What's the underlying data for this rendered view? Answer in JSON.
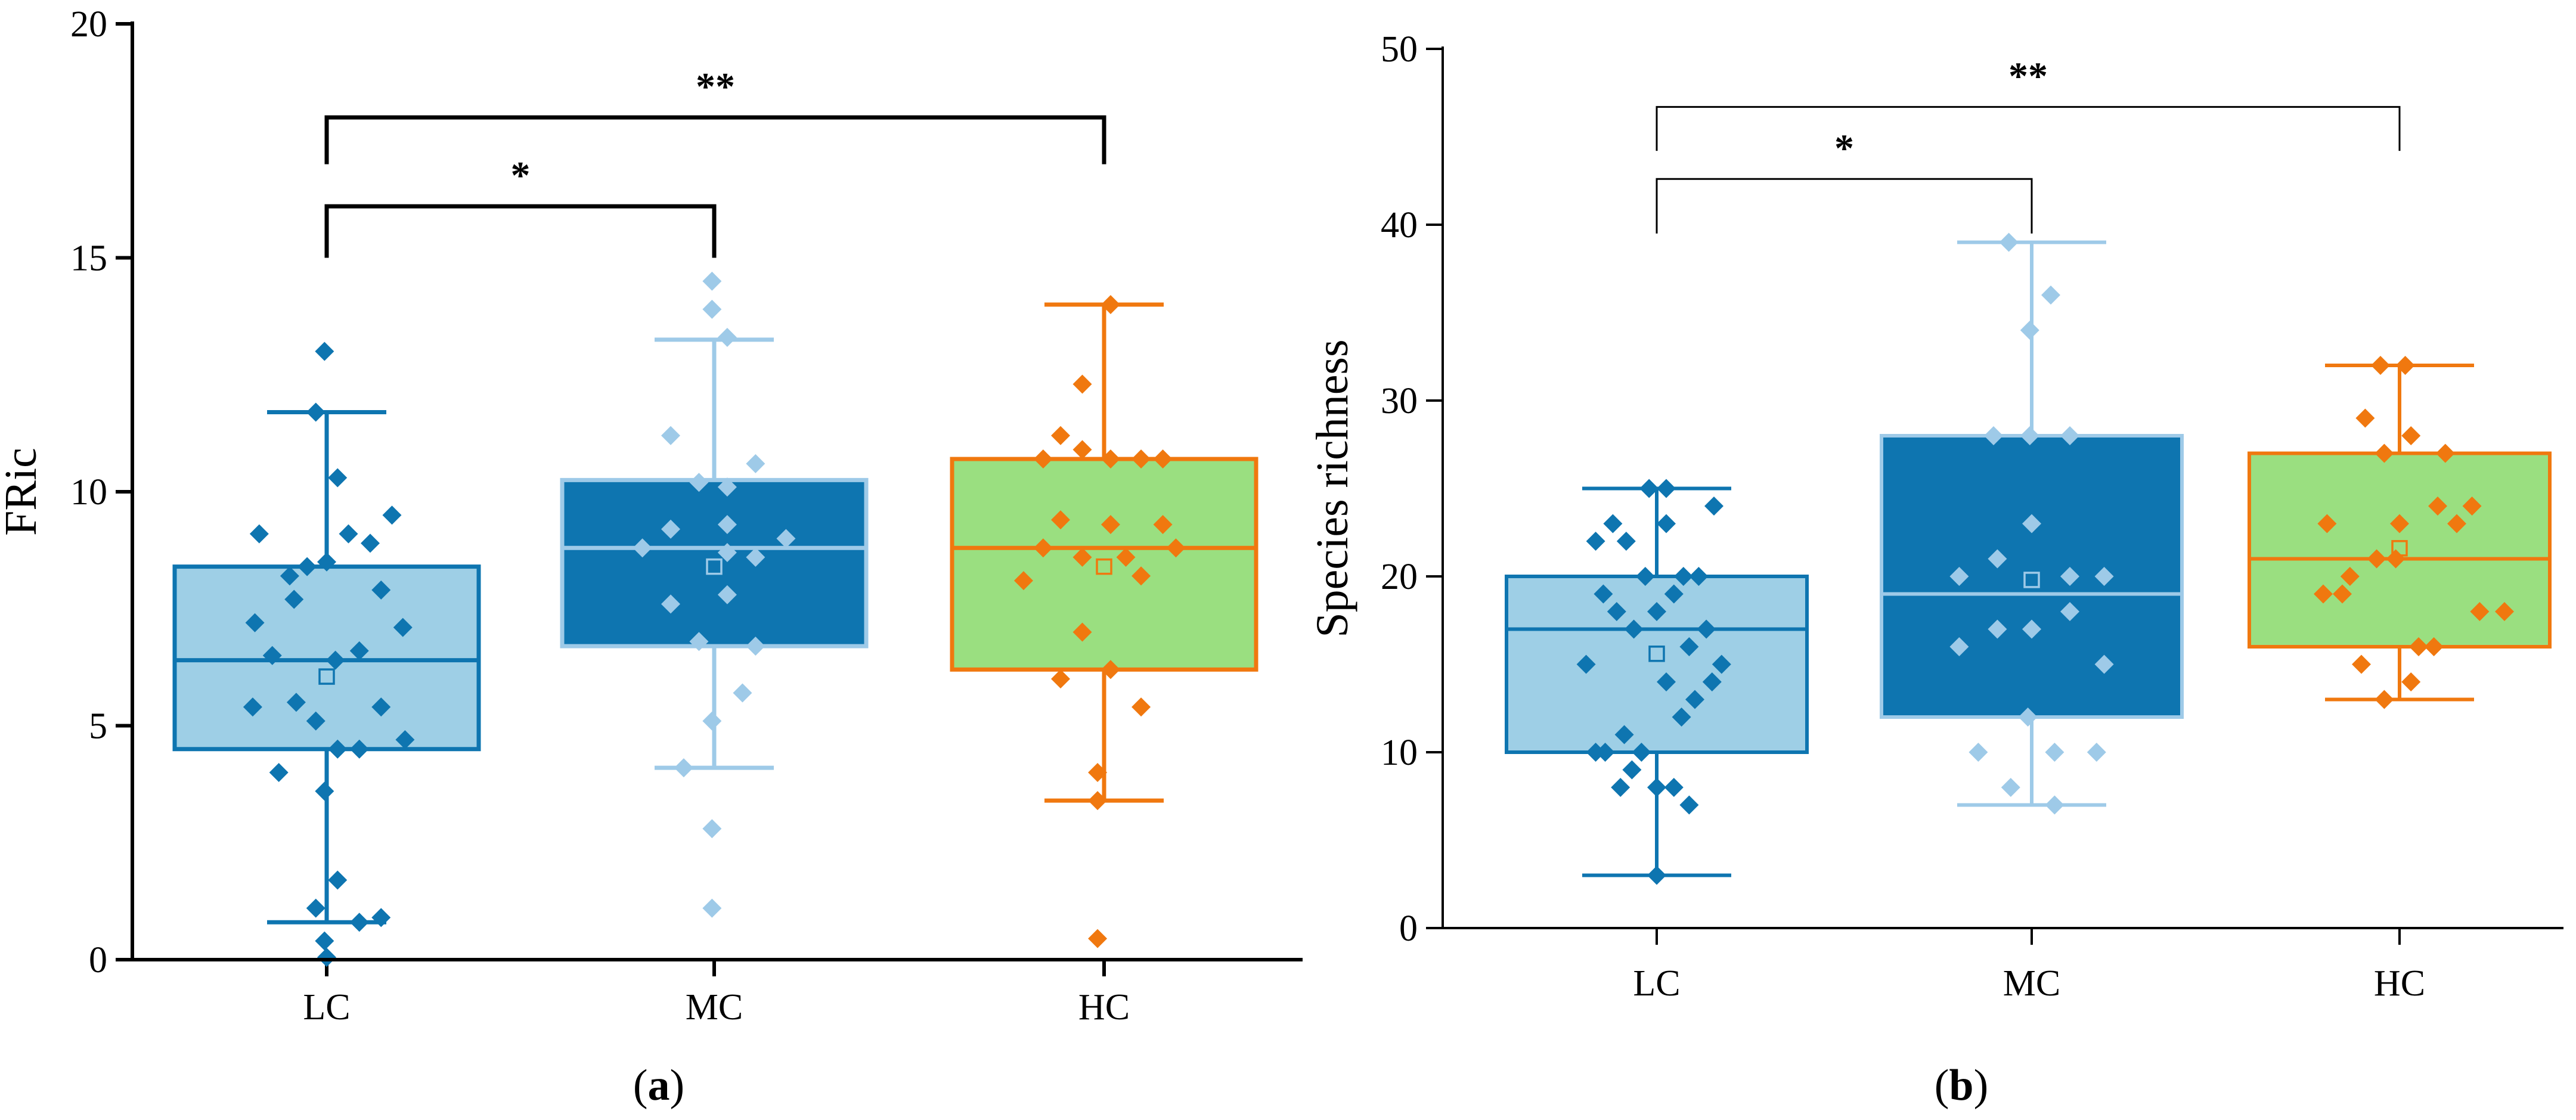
{
  "colors": {
    "lc_fill": "#9ECFE6",
    "lc_edge": "#0E75B0",
    "mc_fill": "#0E75B0",
    "mc_edge": "#9ECAE8",
    "hc_fill": "#9ADF80",
    "hc_edge": "#F0780F",
    "axis": "#000000"
  },
  "chart_data": [
    {
      "panel_label": "(a)",
      "panel_letter": "a",
      "type": "boxplot",
      "ylabel": "FRic",
      "xlabel": "",
      "ylim": [
        0,
        20
      ],
      "yticks": [
        0,
        5,
        10,
        15,
        20
      ],
      "ytick_labels": [
        "0",
        "5",
        "10",
        "15",
        "20"
      ],
      "categories": [
        "LC",
        "MC",
        "HC"
      ],
      "boxes": [
        {
          "group": "LC",
          "whisker_low": 0.8,
          "q1": 4.5,
          "median": 6.4,
          "q3": 8.4,
          "whisker_high": 11.7,
          "mean": 6.05
        },
        {
          "group": "MC",
          "whisker_low": 4.1,
          "q1": 6.7,
          "median": 8.8,
          "q3": 10.25,
          "whisker_high": 13.25,
          "mean": 8.4
        },
        {
          "group": "HC",
          "whisker_low": 3.4,
          "q1": 6.2,
          "median": 8.8,
          "q3": 10.7,
          "whisker_high": 14.0,
          "mean": 8.4
        }
      ],
      "points": [
        {
          "group": "LC",
          "data": [
            {
              "o": -0.31,
              "y": 9.1
            },
            {
              "o": -0.33,
              "y": 7.2
            },
            {
              "o": -0.34,
              "y": 5.4
            },
            {
              "o": -0.25,
              "y": 6.5
            },
            {
              "o": -0.22,
              "y": 4.0
            },
            {
              "o": -0.17,
              "y": 8.2
            },
            {
              "o": -0.15,
              "y": 7.7
            },
            {
              "o": -0.14,
              "y": 5.5
            },
            {
              "o": -0.09,
              "y": 8.4
            },
            {
              "o": -0.05,
              "y": 5.1
            },
            {
              "o": -0.05,
              "y": 1.1
            },
            {
              "o": -0.05,
              "y": 11.7
            },
            {
              "o": -0.01,
              "y": 0.4
            },
            {
              "o": -0.01,
              "y": 3.6
            },
            {
              "o": -0.01,
              "y": 13.0
            },
            {
              "o": 0.0,
              "y": 8.5
            },
            {
              "o": 0.04,
              "y": 6.4
            },
            {
              "o": 0.05,
              "y": 4.5
            },
            {
              "o": 0.05,
              "y": 1.7
            },
            {
              "o": 0.05,
              "y": 10.3
            },
            {
              "o": 0.1,
              "y": 9.1
            },
            {
              "o": 0.15,
              "y": 4.5
            },
            {
              "o": 0.15,
              "y": 6.6
            },
            {
              "o": 0.15,
              "y": 0.8
            },
            {
              "o": 0.2,
              "y": 8.9
            },
            {
              "o": 0.25,
              "y": 7.9
            },
            {
              "o": 0.25,
              "y": 5.4
            },
            {
              "o": 0.25,
              "y": 0.9
            },
            {
              "o": 0.3,
              "y": 9.5
            },
            {
              "o": 0.35,
              "y": 7.1
            },
            {
              "o": 0.36,
              "y": 4.7
            },
            {
              "o": 0.0,
              "y": 0.05
            }
          ]
        },
        {
          "group": "MC",
          "data": [
            {
              "o": -0.33,
              "y": 8.8
            },
            {
              "o": -0.2,
              "y": 11.2
            },
            {
              "o": -0.2,
              "y": 9.2
            },
            {
              "o": -0.2,
              "y": 7.6
            },
            {
              "o": -0.14,
              "y": 4.1
            },
            {
              "o": -0.07,
              "y": 10.2
            },
            {
              "o": -0.07,
              "y": 6.8
            },
            {
              "o": -0.01,
              "y": 14.5
            },
            {
              "o": -0.01,
              "y": 13.9
            },
            {
              "o": -0.01,
              "y": 5.1
            },
            {
              "o": -0.01,
              "y": 2.8
            },
            {
              "o": -0.01,
              "y": 1.1
            },
            {
              "o": 0.06,
              "y": 8.7
            },
            {
              "o": 0.06,
              "y": 13.3
            },
            {
              "o": 0.06,
              "y": 10.1
            },
            {
              "o": 0.06,
              "y": 9.3
            },
            {
              "o": 0.06,
              "y": 7.8
            },
            {
              "o": 0.13,
              "y": 5.7
            },
            {
              "o": 0.19,
              "y": 10.6
            },
            {
              "o": 0.19,
              "y": 8.6
            },
            {
              "o": 0.19,
              "y": 6.7
            },
            {
              "o": 0.33,
              "y": 9.0
            }
          ]
        },
        {
          "group": "HC",
          "data": [
            {
              "o": -0.37,
              "y": 8.1
            },
            {
              "o": -0.28,
              "y": 8.8
            },
            {
              "o": -0.28,
              "y": 10.7
            },
            {
              "o": -0.2,
              "y": 11.2
            },
            {
              "o": -0.2,
              "y": 9.4
            },
            {
              "o": -0.2,
              "y": 6.0
            },
            {
              "o": -0.1,
              "y": 10.9
            },
            {
              "o": -0.1,
              "y": 12.3
            },
            {
              "o": -0.1,
              "y": 8.6
            },
            {
              "o": -0.1,
              "y": 7.0
            },
            {
              "o": -0.03,
              "y": 4.0
            },
            {
              "o": -0.03,
              "y": 3.4
            },
            {
              "o": -0.03,
              "y": 0.45
            },
            {
              "o": 0.03,
              "y": 14.0
            },
            {
              "o": 0.03,
              "y": 10.7
            },
            {
              "o": 0.03,
              "y": 9.3
            },
            {
              "o": 0.03,
              "y": 6.2
            },
            {
              "o": 0.1,
              "y": 8.6
            },
            {
              "o": 0.17,
              "y": 10.7
            },
            {
              "o": 0.17,
              "y": 8.2
            },
            {
              "o": 0.17,
              "y": 5.4
            },
            {
              "o": 0.27,
              "y": 9.3
            },
            {
              "o": 0.27,
              "y": 10.7
            },
            {
              "o": 0.33,
              "y": 8.8
            }
          ]
        }
      ],
      "significance": [
        {
          "from": "LC",
          "to": "HC",
          "label": "**",
          "bar_y": 18.0,
          "drop_to": 17.0
        },
        {
          "from": "LC",
          "to": "MC",
          "label": "*",
          "bar_y": 16.1,
          "drop_to": 15.0
        }
      ]
    },
    {
      "panel_label": "(b)",
      "panel_letter": "b",
      "type": "boxplot",
      "ylabel": "Species richness",
      "xlabel": "",
      "ylim": [
        0,
        50
      ],
      "yticks": [
        0,
        10,
        20,
        30,
        40,
        50
      ],
      "ytick_labels": [
        "0",
        "10",
        "20",
        "30",
        "40",
        "50"
      ],
      "categories": [
        "LC",
        "MC",
        "HC"
      ],
      "boxes": [
        {
          "group": "LC",
          "whisker_low": 3,
          "q1": 10,
          "median": 17,
          "q3": 20,
          "whisker_high": 25,
          "mean": 15.6
        },
        {
          "group": "MC",
          "whisker_low": 7,
          "q1": 12,
          "median": 19,
          "q3": 28,
          "whisker_high": 39,
          "mean": 19.8
        },
        {
          "group": "HC",
          "whisker_low": 13,
          "q1": 16,
          "median": 21,
          "q3": 27,
          "whisker_high": 32,
          "mean": 21.6
        }
      ],
      "points": [
        {
          "group": "LC",
          "data": [
            {
              "o": -0.37,
              "y": 15
            },
            {
              "o": -0.32,
              "y": 10
            },
            {
              "o": -0.32,
              "y": 22
            },
            {
              "o": -0.28,
              "y": 19
            },
            {
              "o": -0.27,
              "y": 10
            },
            {
              "o": -0.23,
              "y": 23
            },
            {
              "o": -0.21,
              "y": 18
            },
            {
              "o": -0.19,
              "y": 8
            },
            {
              "o": -0.17,
              "y": 11
            },
            {
              "o": -0.16,
              "y": 22
            },
            {
              "o": -0.13,
              "y": 9
            },
            {
              "o": -0.12,
              "y": 17
            },
            {
              "o": -0.08,
              "y": 10
            },
            {
              "o": -0.06,
              "y": 20
            },
            {
              "o": -0.04,
              "y": 25
            },
            {
              "o": 0.0,
              "y": 3
            },
            {
              "o": 0.0,
              "y": 8
            },
            {
              "o": 0.0,
              "y": 18
            },
            {
              "o": 0.05,
              "y": 23
            },
            {
              "o": 0.05,
              "y": 25
            },
            {
              "o": 0.05,
              "y": 14
            },
            {
              "o": 0.09,
              "y": 8
            },
            {
              "o": 0.09,
              "y": 19
            },
            {
              "o": 0.13,
              "y": 12
            },
            {
              "o": 0.14,
              "y": 20
            },
            {
              "o": 0.17,
              "y": 7
            },
            {
              "o": 0.17,
              "y": 16
            },
            {
              "o": 0.2,
              "y": 13
            },
            {
              "o": 0.22,
              "y": 20
            },
            {
              "o": 0.26,
              "y": 17
            },
            {
              "o": 0.29,
              "y": 14
            },
            {
              "o": 0.3,
              "y": 24
            },
            {
              "o": 0.34,
              "y": 15
            }
          ]
        },
        {
          "group": "MC",
          "data": [
            {
              "o": -0.38,
              "y": 20
            },
            {
              "o": -0.38,
              "y": 16
            },
            {
              "o": -0.28,
              "y": 10
            },
            {
              "o": -0.2,
              "y": 28
            },
            {
              "o": -0.18,
              "y": 21
            },
            {
              "o": -0.18,
              "y": 17
            },
            {
              "o": -0.12,
              "y": 39
            },
            {
              "o": -0.11,
              "y": 8
            },
            {
              "o": -0.02,
              "y": 12
            },
            {
              "o": -0.01,
              "y": 34
            },
            {
              "o": -0.01,
              "y": 28
            },
            {
              "o": 0.0,
              "y": 23
            },
            {
              "o": 0.0,
              "y": 17
            },
            {
              "o": 0.1,
              "y": 36
            },
            {
              "o": 0.12,
              "y": 10
            },
            {
              "o": 0.12,
              "y": 7
            },
            {
              "o": 0.2,
              "y": 28
            },
            {
              "o": 0.2,
              "y": 20
            },
            {
              "o": 0.2,
              "y": 18
            },
            {
              "o": 0.34,
              "y": 10
            },
            {
              "o": 0.38,
              "y": 20
            },
            {
              "o": 0.38,
              "y": 15
            }
          ]
        },
        {
          "group": "HC",
          "data": [
            {
              "o": -0.4,
              "y": 19
            },
            {
              "o": -0.38,
              "y": 23
            },
            {
              "o": -0.3,
              "y": 19
            },
            {
              "o": -0.26,
              "y": 20
            },
            {
              "o": -0.2,
              "y": 15
            },
            {
              "o": -0.18,
              "y": 29
            },
            {
              "o": -0.12,
              "y": 21
            },
            {
              "o": -0.08,
              "y": 27
            },
            {
              "o": -0.08,
              "y": 13
            },
            {
              "o": -0.02,
              "y": 21
            },
            {
              "o": 0.0,
              "y": 23
            },
            {
              "o": 0.03,
              "y": 32
            },
            {
              "o": 0.06,
              "y": 28
            },
            {
              "o": 0.06,
              "y": 14
            },
            {
              "o": 0.1,
              "y": 16
            },
            {
              "o": 0.18,
              "y": 16
            },
            {
              "o": 0.2,
              "y": 24
            },
            {
              "o": 0.24,
              "y": 27
            },
            {
              "o": 0.3,
              "y": 23
            },
            {
              "o": 0.38,
              "y": 24
            },
            {
              "o": 0.42,
              "y": 18
            },
            {
              "o": 0.55,
              "y": 18
            },
            {
              "o": -0.1,
              "y": 32
            }
          ]
        }
      ],
      "significance": [
        {
          "from": "LC",
          "to": "HC",
          "label": "**",
          "bar_y": 46.7,
          "drop_to": 44.2
        },
        {
          "from": "LC",
          "to": "MC",
          "label": "*",
          "bar_y": 42.6,
          "drop_to": 39.5
        }
      ]
    }
  ]
}
